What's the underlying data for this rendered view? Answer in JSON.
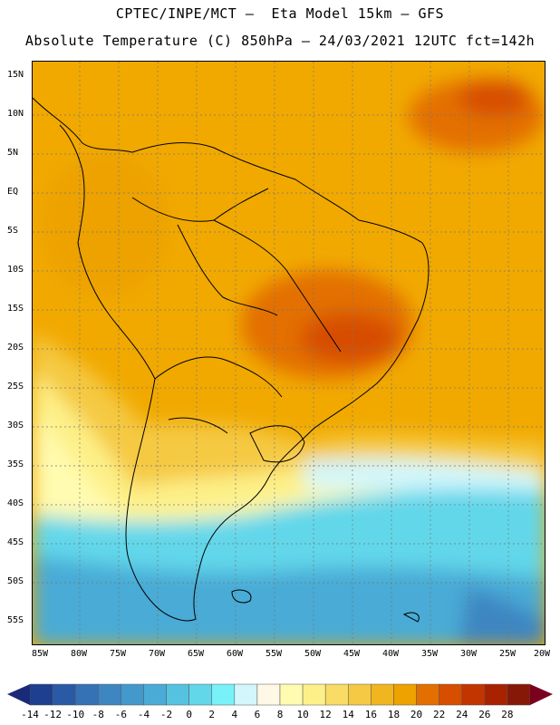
{
  "header": {
    "line1": "CPTEC/INPE/MCT –  Eta Model 15km – GFS",
    "line2": "Absolute Temperature (C) 850hPa – 24/03/2021 12UTC fct=142h"
  },
  "latitude_labels": [
    "15N",
    "10N",
    "5N",
    "EQ",
    "5S",
    "10S",
    "15S",
    "20S",
    "25S",
    "30S",
    "35S",
    "40S",
    "45S",
    "50S",
    "55S"
  ],
  "longitude_labels": [
    "85W",
    "80W",
    "75W",
    "70W",
    "65W",
    "60W",
    "55W",
    "50W",
    "45W",
    "40W",
    "35W",
    "30W",
    "25W",
    "20W"
  ],
  "colorbar": {
    "labels": [
      "-14",
      "-12",
      "-10",
      "-8",
      "-6",
      "-4",
      "-2",
      "0",
      "2",
      "4",
      "6",
      "8",
      "10",
      "12",
      "14",
      "16",
      "18",
      "20",
      "22",
      "24",
      "26",
      "28"
    ],
    "colors": [
      "#1e3f8e",
      "#2a5aa6",
      "#3572b5",
      "#3d86c2",
      "#4399cc",
      "#4aabd6",
      "#55c3e0",
      "#62d7ea",
      "#78f2f8",
      "#d2f6fb",
      "#fff8e6",
      "#fffbb0",
      "#fdf088",
      "#f9dc65",
      "#f5c943",
      "#f1b51f",
      "#eda200",
      "#e36f00",
      "#d74e00",
      "#c23500",
      "#a82200",
      "#861808"
    ],
    "under_color": "#1b2a78",
    "over_color": "#7a0020"
  }
}
